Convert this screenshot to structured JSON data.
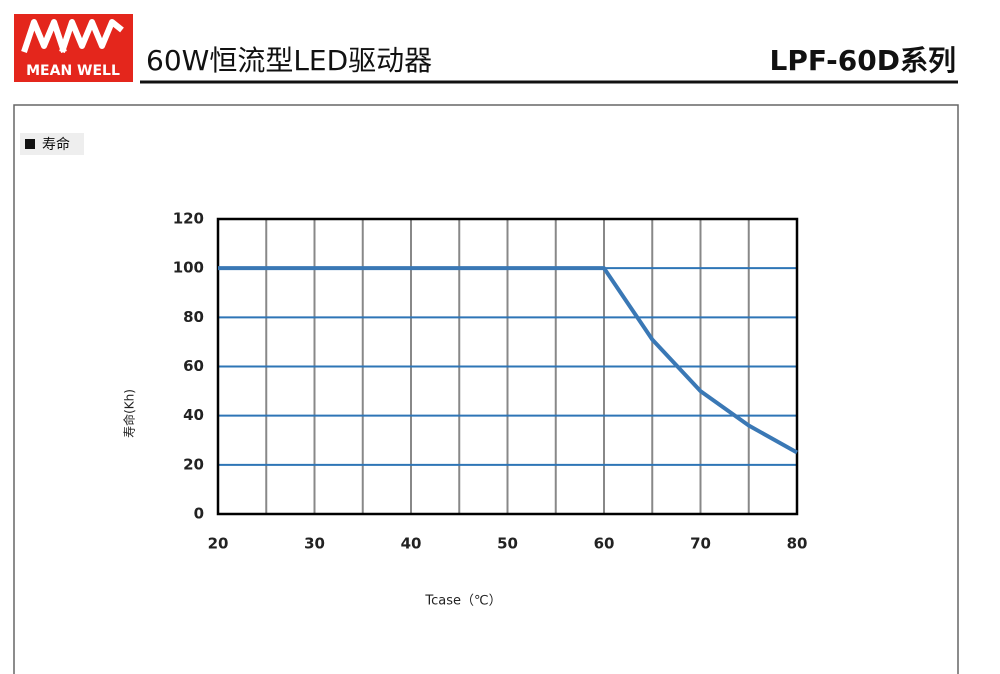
{
  "header": {
    "logo": "MEAN WELL",
    "title": "60W恒流型LED驱动器",
    "series": "LPF-60D系列"
  },
  "section": {
    "title": "寿命"
  },
  "chart_data": {
    "type": "line",
    "x": [
      20,
      60,
      65,
      70,
      75,
      80
    ],
    "values": [
      100,
      100,
      71,
      50,
      36,
      25
    ],
    "color": "#3a78b5",
    "xlim": [
      20,
      80
    ],
    "xticks": [
      20,
      30,
      40,
      50,
      60,
      70,
      80
    ],
    "xminorticks": [
      25,
      35,
      45,
      55,
      65,
      75
    ],
    "ylim": [
      0,
      120
    ],
    "yticks": [
      0,
      20,
      40,
      60,
      80,
      100,
      120
    ],
    "grid": true,
    "xlabel": "Tcase（℃）",
    "ylabel": "寿命(Kh)"
  }
}
